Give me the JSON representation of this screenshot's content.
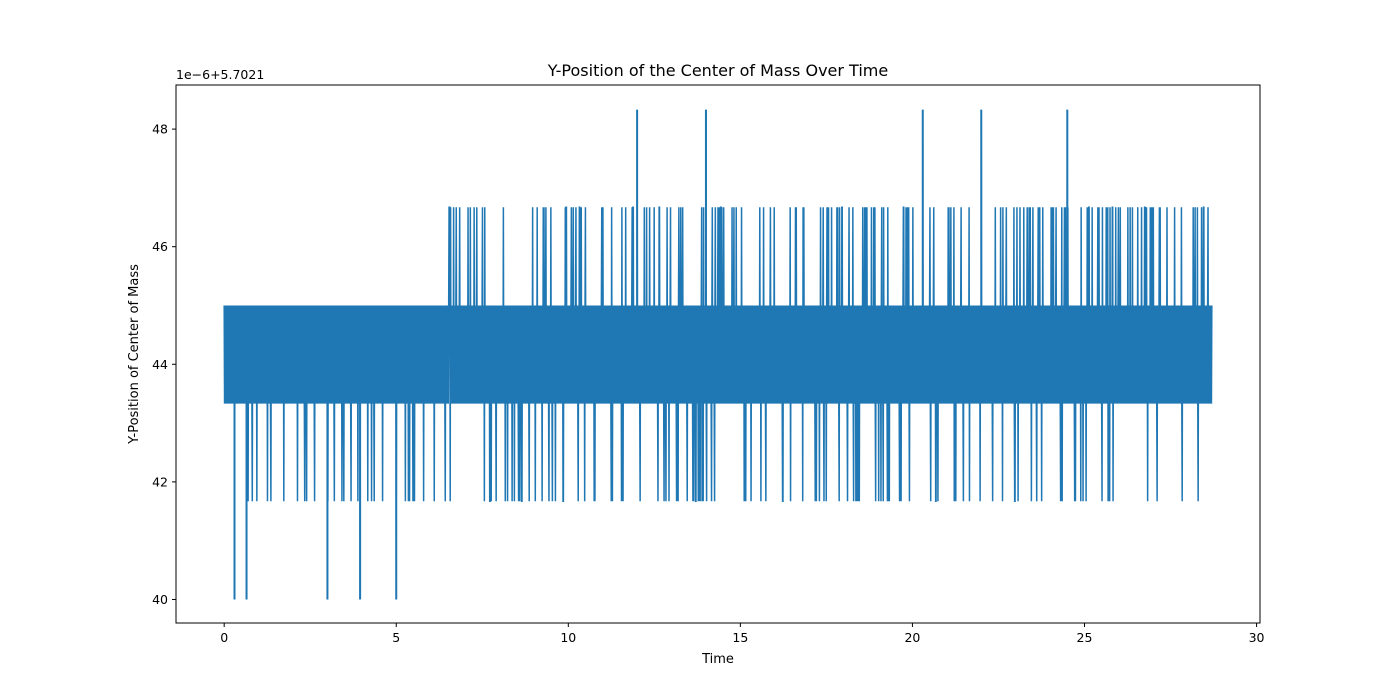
{
  "chart_data": {
    "type": "line",
    "title": "Y-Position of the Center of Mass Over Time",
    "xlabel": "Time",
    "ylabel": "Y-Position of Center of Mass",
    "y_offset_label": "1e−6+5.7021",
    "xlim": [
      -1.4,
      30.1
    ],
    "ylim": [
      39.6,
      48.75
    ],
    "x_ticks": [
      0,
      5,
      10,
      15,
      20,
      25,
      30
    ],
    "y_ticks": [
      40,
      42,
      44,
      46,
      48
    ],
    "grid": false,
    "line_color": "#1f77b4",
    "series": [
      {
        "x_range": [
          0,
          28.7
        ],
        "phases": [
          {
            "x_start": 0,
            "x_end": 6.5,
            "levels": [
              41.67,
              43.33,
              45.0
            ]
          },
          {
            "x_start": 6.5,
            "x_end": 28.7,
            "levels": [
              41.67,
              43.33,
              45.0,
              46.67
            ]
          }
        ],
        "spikes_high": [
          {
            "x": 12.0,
            "y": 48.33
          },
          {
            "x": 14.0,
            "y": 48.33
          },
          {
            "x": 20.3,
            "y": 48.33
          },
          {
            "x": 22.0,
            "y": 48.33
          },
          {
            "x": 24.5,
            "y": 48.33
          }
        ],
        "spikes_low": [
          {
            "x": 0.3,
            "y": 40.0
          },
          {
            "x": 0.65,
            "y": 40.0
          },
          {
            "x": 3.0,
            "y": 40.0
          },
          {
            "x": 3.95,
            "y": 40.0
          },
          {
            "x": 5.0,
            "y": 40.0
          }
        ]
      }
    ]
  }
}
